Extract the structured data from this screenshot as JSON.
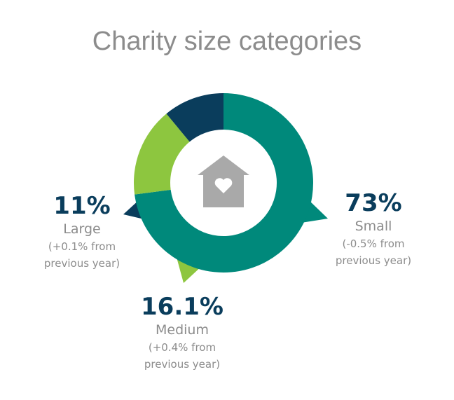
{
  "chart_data": {
    "type": "donut",
    "title": "Charity size categories",
    "categories": [
      "Small",
      "Medium",
      "Large"
    ],
    "values": [
      73,
      16.1,
      11
    ],
    "value_labels": [
      "73%",
      "16.1%",
      "11%"
    ],
    "notes": [
      "(-0.5% from previous year)",
      "(+0.4% from previous year)",
      "(+0.1% from previous year)"
    ],
    "colors": [
      "#00897b",
      "#8dc63f",
      "#0a3d5c"
    ]
  }
}
